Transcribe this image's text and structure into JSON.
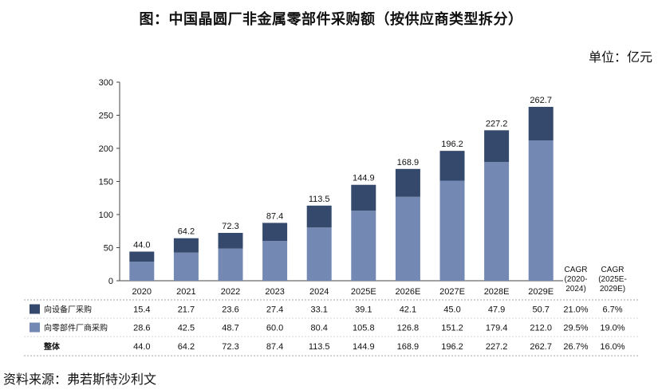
{
  "title": "图：中国晶圆厂非金属零部件采购额（按供应商类型拆分）",
  "unit": "单位：亿元",
  "source": "资料来源：弗若斯特沙利文",
  "colors": {
    "dark": "#34496b",
    "light": "#7388b3"
  },
  "chart_data": {
    "type": "bar",
    "stacked": true,
    "categories": [
      "2020",
      "2021",
      "2022",
      "2023",
      "2024",
      "2025E",
      "2026E",
      "2027E",
      "2028E",
      "2029E"
    ],
    "ylim": [
      0,
      300
    ],
    "yticks": [
      "0",
      "50",
      "100",
      "150",
      "200",
      "250",
      "300"
    ],
    "series": [
      {
        "name": "向零部件厂商采购",
        "color": "light",
        "values": [
          28.6,
          42.5,
          48.7,
          60.0,
          80.4,
          105.8,
          126.8,
          151.2,
          179.4,
          212.0
        ],
        "table": [
          "28.6",
          "42.5",
          "48.7",
          "60.0",
          "80.4",
          "105.8",
          "126.8",
          "151.2",
          "179.4",
          "212.0"
        ],
        "cagr": [
          "29.5%",
          "19.0%"
        ]
      },
      {
        "name": "向设备厂采购",
        "color": "dark",
        "values": [
          15.4,
          21.7,
          23.6,
          27.4,
          33.1,
          39.1,
          42.1,
          45.0,
          47.9,
          50.7
        ],
        "table": [
          "15.4",
          "21.7",
          "23.6",
          "27.4",
          "33.1",
          "39.1",
          "42.1",
          "45.0",
          "47.9",
          "50.7"
        ],
        "cagr": [
          "21.0%",
          "6.7%"
        ]
      }
    ],
    "totals": {
      "name": "整体",
      "labels": [
        "44.0",
        "64.2",
        "72.3",
        "87.4",
        "113.5",
        "144.9",
        "168.9",
        "196.2",
        "227.2",
        "262.7"
      ],
      "cagr": [
        "26.7%",
        "16.0%"
      ]
    },
    "cagr_headers": [
      [
        "CAGR",
        "(2020-",
        "2024)"
      ],
      [
        "CAGR",
        "(2025E-",
        "2029E)"
      ]
    ]
  }
}
